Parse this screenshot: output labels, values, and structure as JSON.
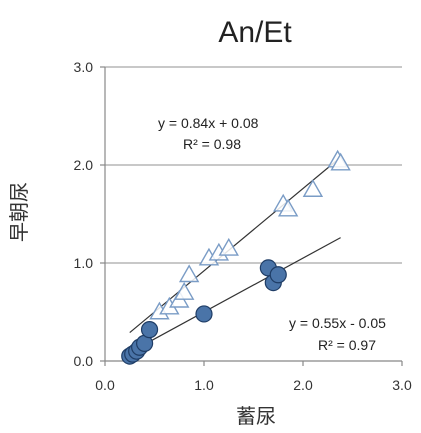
{
  "chart_data": {
    "type": "scatter",
    "title": "An/Et",
    "xlabel": "蓄尿",
    "ylabel": "早朝尿",
    "xlim": [
      0,
      3
    ],
    "ylim": [
      0,
      3
    ],
    "x_ticks": [
      "0.0",
      "1.0",
      "2.0",
      "3.0"
    ],
    "y_ticks": [
      "0.0",
      "1.0",
      "2.0",
      "3.0"
    ],
    "grid": "horizontal",
    "series": [
      {
        "marker": "triangle-open",
        "color": "#7a9cc6",
        "points": [
          [
            0.55,
            0.5
          ],
          [
            0.65,
            0.55
          ],
          [
            0.75,
            0.62
          ],
          [
            0.8,
            0.7
          ],
          [
            0.85,
            0.88
          ],
          [
            1.05,
            1.05
          ],
          [
            1.15,
            1.1
          ],
          [
            1.25,
            1.15
          ],
          [
            1.8,
            1.6
          ],
          [
            1.85,
            1.55
          ],
          [
            2.1,
            1.75
          ],
          [
            2.35,
            2.05
          ],
          [
            2.38,
            2.02
          ]
        ],
        "fit": {
          "slope": 0.84,
          "intercept": 0.08,
          "x_range": [
            0.25,
            2.38
          ]
        }
      },
      {
        "marker": "circle-filled",
        "color": "#4a74a8",
        "points": [
          [
            0.25,
            0.05
          ],
          [
            0.28,
            0.07
          ],
          [
            0.32,
            0.1
          ],
          [
            0.35,
            0.14
          ],
          [
            0.4,
            0.18
          ],
          [
            0.45,
            0.32
          ],
          [
            1.0,
            0.48
          ],
          [
            1.65,
            0.95
          ],
          [
            1.7,
            0.8
          ],
          [
            1.75,
            0.88
          ]
        ],
        "fit": {
          "slope": 0.55,
          "intercept": -0.05,
          "x_range": [
            0.25,
            2.38
          ]
        }
      }
    ],
    "annotations": [
      {
        "equation": "y = 0.84x + 0.08",
        "r2": "R² = 0.98"
      },
      {
        "equation": "y = 0.55x - 0.05",
        "r2": "R² = 0.97"
      }
    ]
  }
}
